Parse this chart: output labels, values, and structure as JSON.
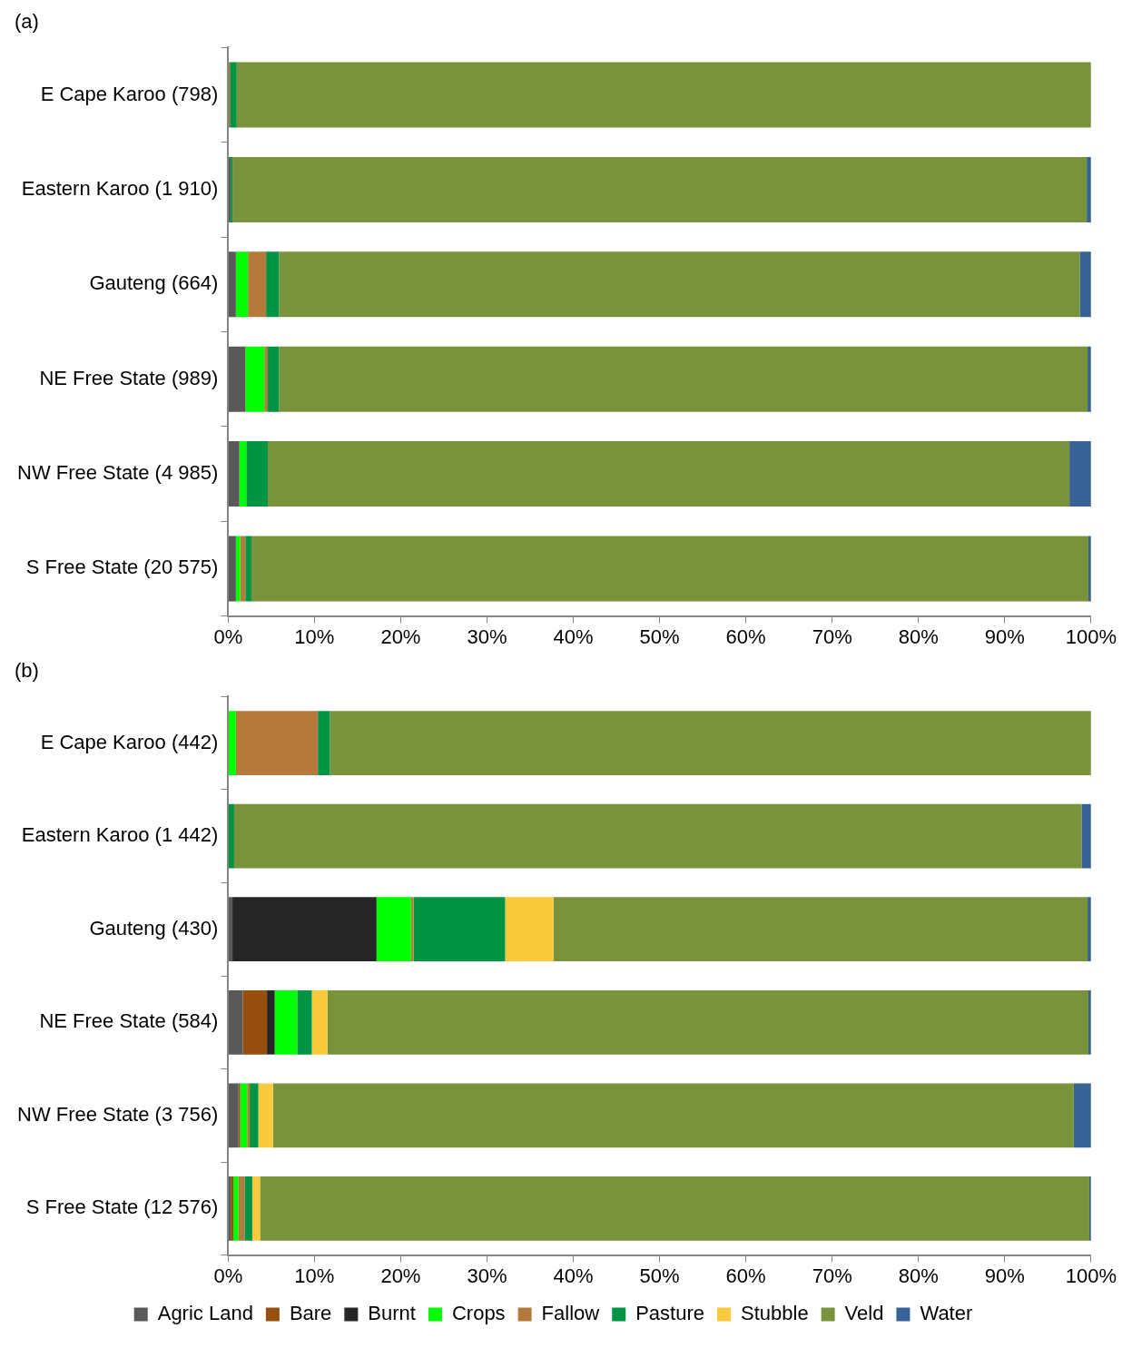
{
  "chart_data": [
    {
      "type": "bar",
      "title": "(a)",
      "orientation": "horizontal",
      "stacked": true,
      "legend": false,
      "grid": false,
      "categories": [
        "E Cape Karoo (798)",
        "Eastern Karoo (1 910)",
        "Gauteng (664)",
        "NE Free State (989)",
        "NW Free State (4 985)",
        "S Free State (20 575)"
      ],
      "xlim": [
        0,
        100
      ],
      "xticks": [
        {
          "value": 0,
          "label": "0%"
        },
        {
          "value": 10,
          "label": "10%"
        },
        {
          "value": 20,
          "label": "20%"
        },
        {
          "value": 30,
          "label": "30%"
        },
        {
          "value": 40,
          "label": "40%"
        },
        {
          "value": 50,
          "label": "50%"
        },
        {
          "value": 60,
          "label": "60%"
        },
        {
          "value": 70,
          "label": "70%"
        },
        {
          "value": 80,
          "label": "80%"
        },
        {
          "value": 90,
          "label": "90%"
        },
        {
          "value": 100,
          "label": "100%"
        }
      ],
      "series": [
        {
          "color": "#595959",
          "values": [
            0,
            0.3,
            0.9,
            2.0,
            1.3,
            0.9
          ]
        },
        {
          "color": "#974f10",
          "values": [
            0,
            0,
            0,
            0,
            0,
            0
          ]
        },
        {
          "color": "#262626",
          "values": [
            0,
            0,
            0,
            0,
            0,
            0
          ]
        },
        {
          "color": "#00ff00",
          "values": [
            0,
            0,
            1.4,
            2.2,
            0.8,
            0.5
          ]
        },
        {
          "color": "#b5793c",
          "values": [
            0.2,
            0,
            2.1,
            0.4,
            0,
            0.6
          ]
        },
        {
          "color": "#009444",
          "values": [
            0.8,
            0.2,
            1.5,
            1.3,
            2.5,
            0.7
          ]
        },
        {
          "color": "#fbc93c",
          "values": [
            0,
            0,
            0,
            0,
            0,
            0
          ]
        },
        {
          "color": "#78933c",
          "values": [
            99.0,
            99.0,
            92.8,
            93.7,
            92.9,
            97.0
          ]
        },
        {
          "color": "#366296",
          "values": [
            0,
            0.5,
            1.3,
            0.4,
            2.5,
            0.3
          ]
        }
      ]
    },
    {
      "type": "bar",
      "title": "(b)",
      "orientation": "horizontal",
      "stacked": true,
      "legend": "bottom",
      "grid": false,
      "categories": [
        "E Cape Karoo (442)",
        "Eastern Karoo (1 442)",
        "Gauteng (430)",
        "NE Free State (584)",
        "NW Free State (3 756)",
        "S Free State (12 576)"
      ],
      "xlim": [
        0,
        100
      ],
      "xticks": [
        {
          "value": 0,
          "label": "0%"
        },
        {
          "value": 10,
          "label": "10%"
        },
        {
          "value": 20,
          "label": "20%"
        },
        {
          "value": 30,
          "label": "30%"
        },
        {
          "value": 40,
          "label": "40%"
        },
        {
          "value": 50,
          "label": "50%"
        },
        {
          "value": 60,
          "label": "60%"
        },
        {
          "value": 70,
          "label": "70%"
        },
        {
          "value": 80,
          "label": "80%"
        },
        {
          "value": 90,
          "label": "90%"
        },
        {
          "value": 100,
          "label": "100%"
        }
      ],
      "series": [
        {
          "name": "Agric Land",
          "color": "#595959",
          "values": [
            0,
            0,
            0.5,
            1.7,
            1.2,
            0.3
          ]
        },
        {
          "name": "Bare",
          "color": "#974f10",
          "values": [
            0,
            0,
            0,
            2.8,
            0.2,
            0.3
          ]
        },
        {
          "name": "Burnt",
          "color": "#262626",
          "values": [
            0,
            0,
            16.7,
            0.9,
            0,
            0
          ]
        },
        {
          "name": "Crops",
          "color": "#00ff00",
          "values": [
            0.9,
            0,
            4.0,
            2.6,
            0.8,
            0.6
          ]
        },
        {
          "name": "Fallow",
          "color": "#b5793c",
          "values": [
            9.5,
            0,
            0.3,
            0,
            0.3,
            0.7
          ]
        },
        {
          "name": "Pasture",
          "color": "#009444",
          "values": [
            1.4,
            0.7,
            10.6,
            1.7,
            1.0,
            0.9
          ]
        },
        {
          "name": "Stubble",
          "color": "#fbc93c",
          "values": [
            0,
            0,
            5.6,
            1.8,
            1.7,
            0.9
          ]
        },
        {
          "name": "Veld",
          "color": "#78933c",
          "values": [
            88.2,
            98.2,
            61.9,
            88.2,
            92.8,
            96.1
          ]
        },
        {
          "name": "Water",
          "color": "#366296",
          "values": [
            0,
            1.1,
            0.4,
            0.3,
            2.0,
            0.2
          ]
        }
      ]
    }
  ]
}
